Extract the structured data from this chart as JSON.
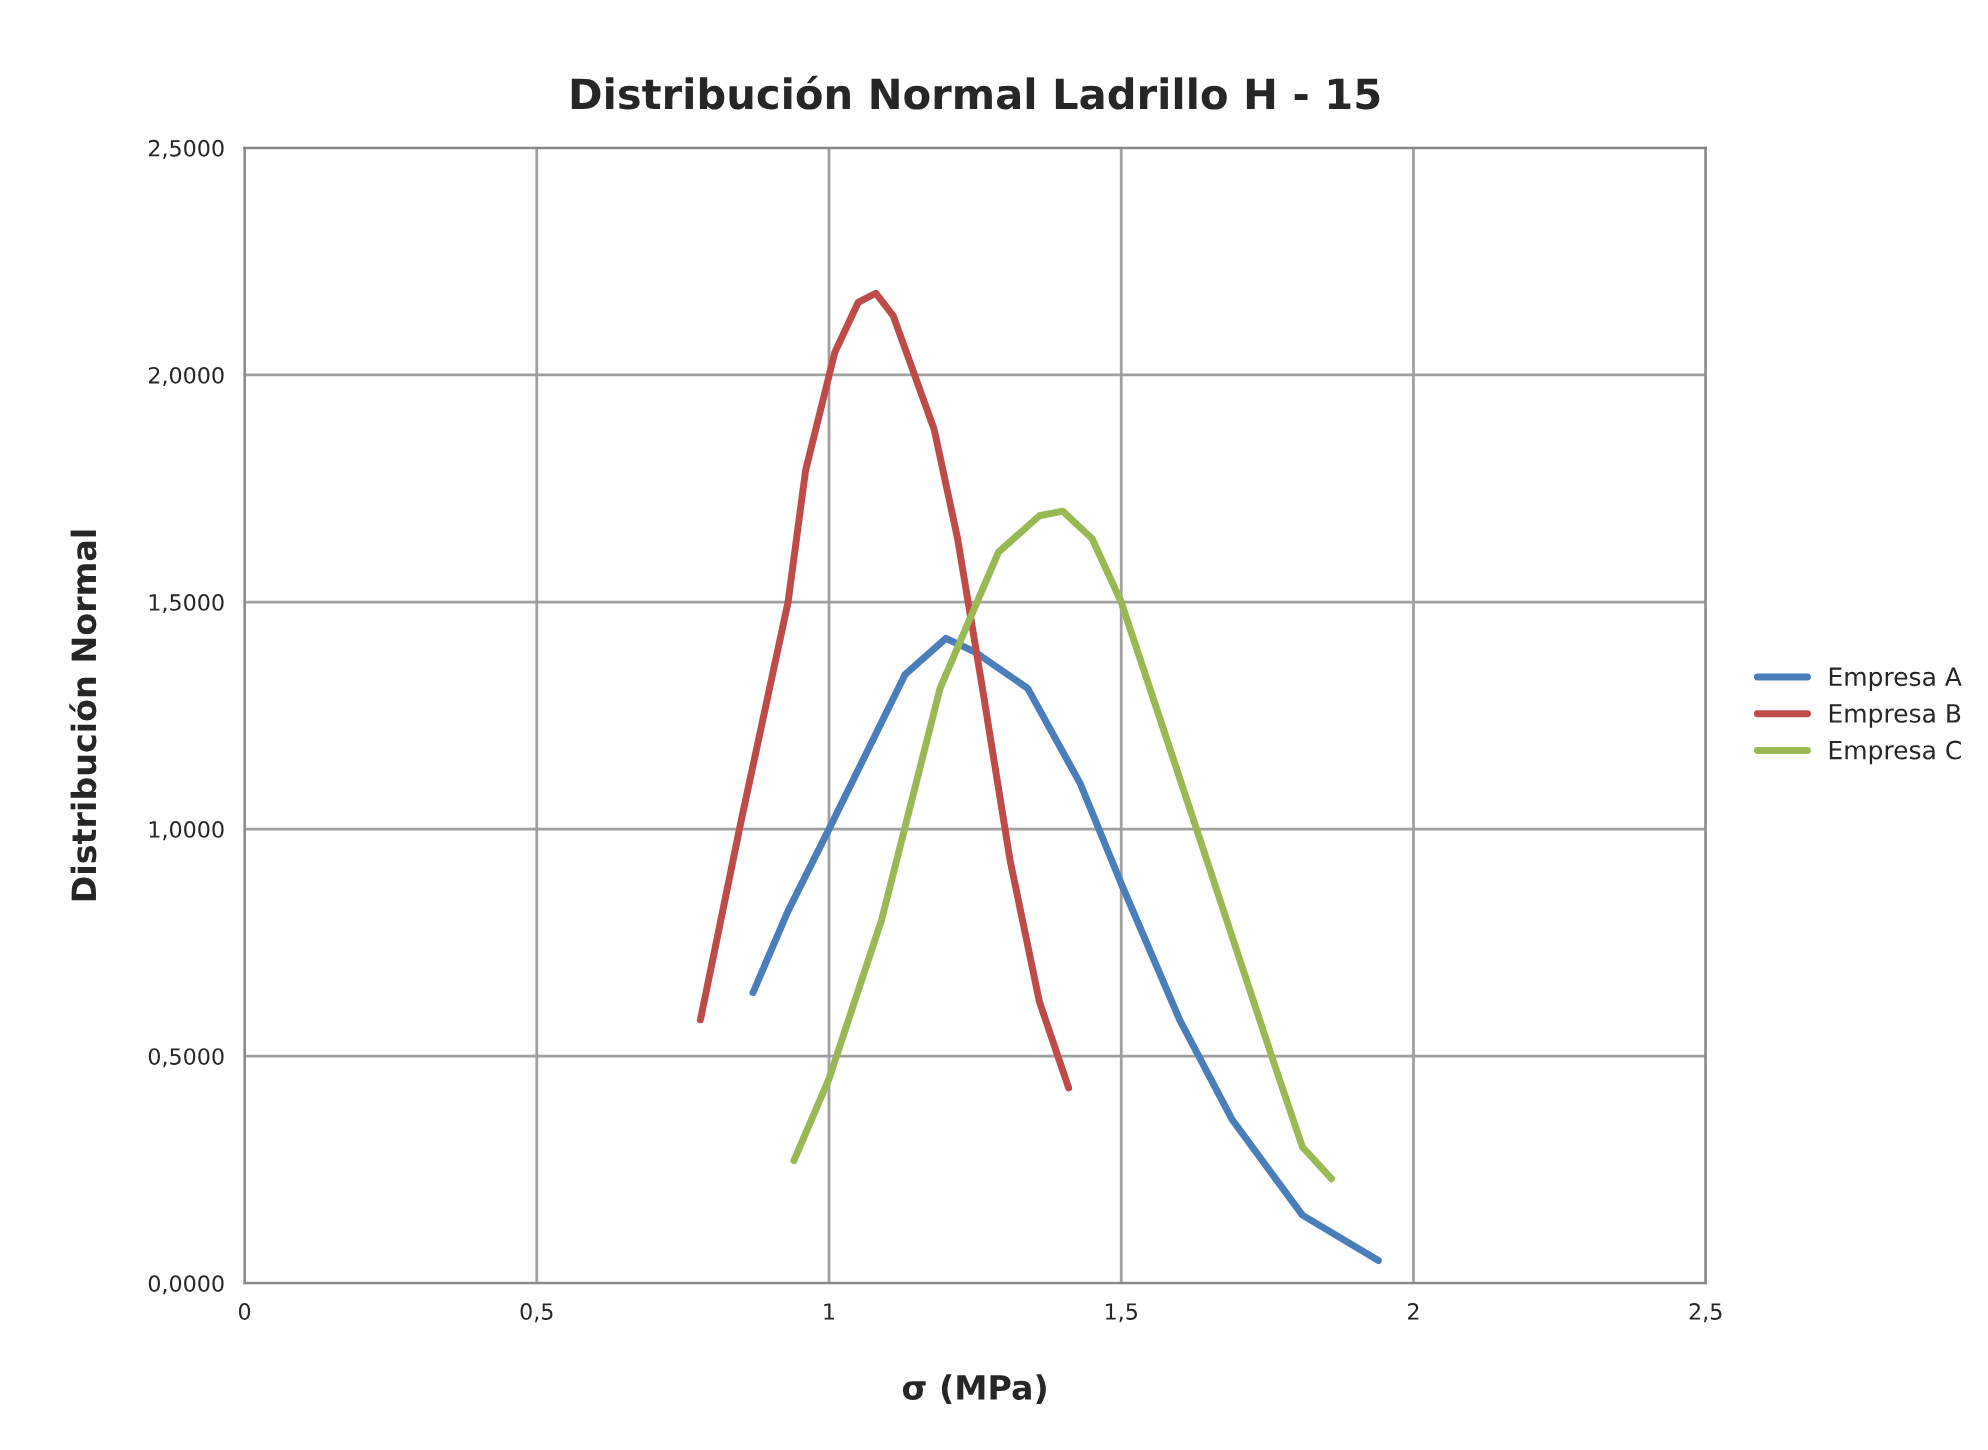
{
  "chart_data": {
    "type": "line",
    "title": "Distribución Normal Ladrillo H - 15",
    "xlabel": "σ (MPa)",
    "ylabel": "Distribución Normal",
    "xlim": [
      0,
      2.5
    ],
    "xticks": [
      0,
      {
        "value": 0.5,
        "label": "0,5"
      },
      1,
      {
        "value": 1.5,
        "label": "1,5"
      },
      2,
      {
        "value": 2.5,
        "label": "2,5"
      }
    ],
    "ylim": [
      0,
      2.5
    ],
    "yticks": [
      {
        "value": 0,
        "label": "0,0000"
      },
      {
        "value": 0.5,
        "label": "0,5000"
      },
      {
        "value": 1,
        "label": "1,0000"
      },
      {
        "value": 1.5,
        "label": "1,5000"
      },
      {
        "value": 2,
        "label": "2,0000"
      },
      {
        "value": 2.5,
        "label": "2,5000"
      }
    ],
    "grid": true,
    "legend": "right",
    "marker": "none",
    "line_style": "solid",
    "series": [
      {
        "name": "Empresa A",
        "color": "#4a7ebb",
        "x": [
          0.87,
          0.93,
          1.0,
          1.13,
          1.2,
          1.25,
          1.34,
          1.43,
          1.5,
          1.6,
          1.69,
          1.81,
          1.94
        ],
        "values": [
          0.64,
          0.82,
          1.0,
          1.34,
          1.42,
          1.39,
          1.31,
          1.1,
          0.88,
          0.58,
          0.36,
          0.15,
          0.05
        ]
      },
      {
        "name": "Empresa B",
        "color": "#be4b48",
        "x": [
          0.78,
          0.85,
          0.93,
          0.96,
          1.01,
          1.05,
          1.08,
          1.11,
          1.18,
          1.22,
          1.26,
          1.31,
          1.36,
          1.41
        ],
        "values": [
          0.58,
          1.02,
          1.5,
          1.79,
          2.05,
          2.16,
          2.18,
          2.13,
          1.88,
          1.64,
          1.33,
          0.93,
          0.62,
          0.43
        ]
      },
      {
        "name": "Empresa C",
        "color": "#98b954",
        "x": [
          0.94,
          1.0,
          1.09,
          1.19,
          1.29,
          1.36,
          1.4,
          1.45,
          1.5,
          1.58,
          1.67,
          1.76,
          1.81,
          1.86
        ],
        "values": [
          0.27,
          0.45,
          0.8,
          1.31,
          1.61,
          1.69,
          1.7,
          1.64,
          1.5,
          1.19,
          0.84,
          0.49,
          0.3,
          0.23
        ]
      }
    ]
  }
}
